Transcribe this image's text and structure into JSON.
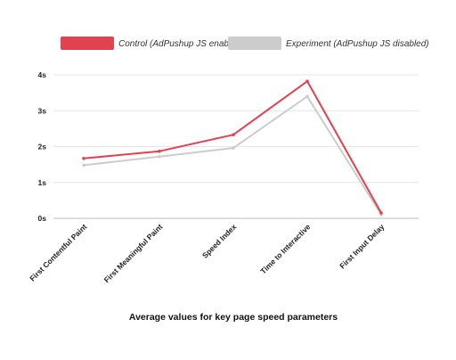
{
  "chart_data": {
    "type": "line",
    "categories": [
      "First Contentful Paint",
      "First Meaningful Paint",
      "Speed Index",
      "Time to Interactive",
      "First Input Delay"
    ],
    "series": [
      {
        "name": "Control (AdPushup JS enabled)",
        "color": "#e0424f",
        "values": [
          1.67,
          1.87,
          2.33,
          3.82,
          0.15
        ]
      },
      {
        "name": "Experiment (AdPushup JS disabled)",
        "color": "#cccccc",
        "values": [
          1.48,
          1.72,
          1.96,
          3.4,
          0.1
        ]
      }
    ],
    "ylim": [
      0,
      4
    ],
    "yticks": [
      0,
      1,
      2,
      3,
      4
    ],
    "ytick_labels": [
      "0s",
      "1s",
      "2s",
      "3s",
      "4s"
    ],
    "xlabel": "Average values for key page speed parameters",
    "ylabel": "",
    "grid": true,
    "legend": "top"
  }
}
